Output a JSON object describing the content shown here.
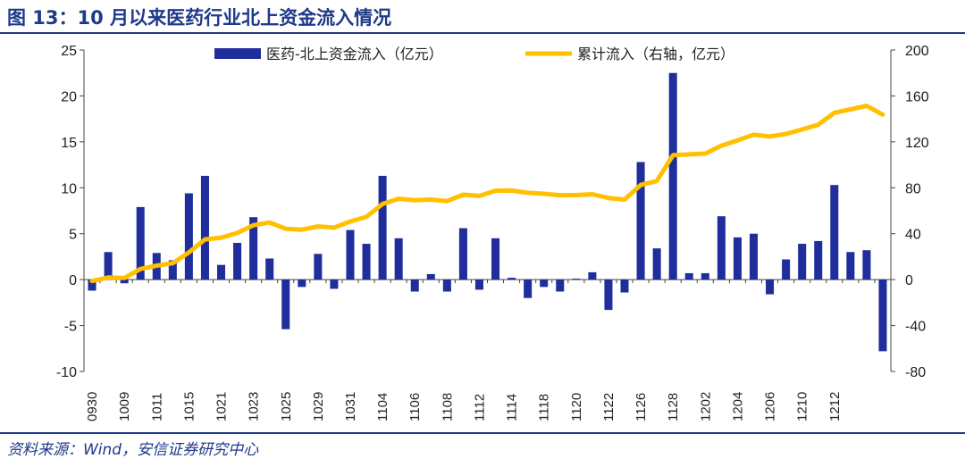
{
  "header": {
    "title": "图 13：10 月以来医药行业北上资金流入情况"
  },
  "footer": {
    "source": "资料来源：Wind，安信证券研究中心"
  },
  "colors": {
    "bar": "#1f2e9c",
    "line": "#ffc000",
    "title": "#1e3a8a"
  },
  "chart_data": {
    "type": "bar",
    "title": "",
    "xlabel": "",
    "ylabel": "",
    "ylim": [
      -10,
      25
    ],
    "yticks": [
      -10,
      -5,
      0,
      5,
      10,
      15,
      20,
      25
    ],
    "y2lim": [
      -80,
      200
    ],
    "y2ticks": [
      -80,
      -40,
      0,
      40,
      80,
      120,
      160,
      200
    ],
    "legend_position": "top",
    "x_tick_labels": [
      "0930",
      "1009",
      "1011",
      "1015",
      "1021",
      "1023",
      "1025",
      "1029",
      "1031",
      "1104",
      "1106",
      "1108",
      "1112",
      "1114",
      "1118",
      "1120",
      "1122",
      "1126",
      "1128",
      "1202",
      "1204",
      "1206",
      "1210",
      "1212"
    ],
    "series": [
      {
        "name": "医药-北上资金流入（亿元）",
        "type": "bar",
        "axis": "left",
        "values": [
          -1.2,
          3.0,
          -0.4,
          7.9,
          2.9,
          2.1,
          9.4,
          11.3,
          1.6,
          4.0,
          6.8,
          2.3,
          -5.4,
          -0.8,
          2.8,
          -1.0,
          5.4,
          3.9,
          11.3,
          4.5,
          -1.3,
          0.6,
          -1.3,
          5.6,
          -1.1,
          4.5,
          0.2,
          -2.0,
          -0.8,
          -1.3,
          0.1,
          0.8,
          -3.3,
          -1.4,
          12.8,
          3.4,
          22.5,
          0.7,
          0.7,
          6.9,
          4.6,
          5.0,
          -1.6,
          2.2,
          3.9,
          4.2,
          10.3,
          3.0,
          3.2,
          -7.8
        ]
      },
      {
        "name": "累计流入（右轴，亿元）",
        "type": "line",
        "axis": "right",
        "values": [
          -1.2,
          1.8,
          1.4,
          9.3,
          12.2,
          14.3,
          23.7,
          35.0,
          36.6,
          40.6,
          47.4,
          49.7,
          44.3,
          43.5,
          46.3,
          45.3,
          50.7,
          54.6,
          65.9,
          70.4,
          69.1,
          69.7,
          68.4,
          74.0,
          72.9,
          77.4,
          77.6,
          75.6,
          74.8,
          73.5,
          73.6,
          74.4,
          71.1,
          69.7,
          82.5,
          85.9,
          108.4,
          109.1,
          109.8,
          116.7,
          121.3,
          126.3,
          124.7,
          126.9,
          130.8,
          135.0,
          145.3,
          148.3,
          151.5,
          143.7
        ]
      }
    ]
  }
}
